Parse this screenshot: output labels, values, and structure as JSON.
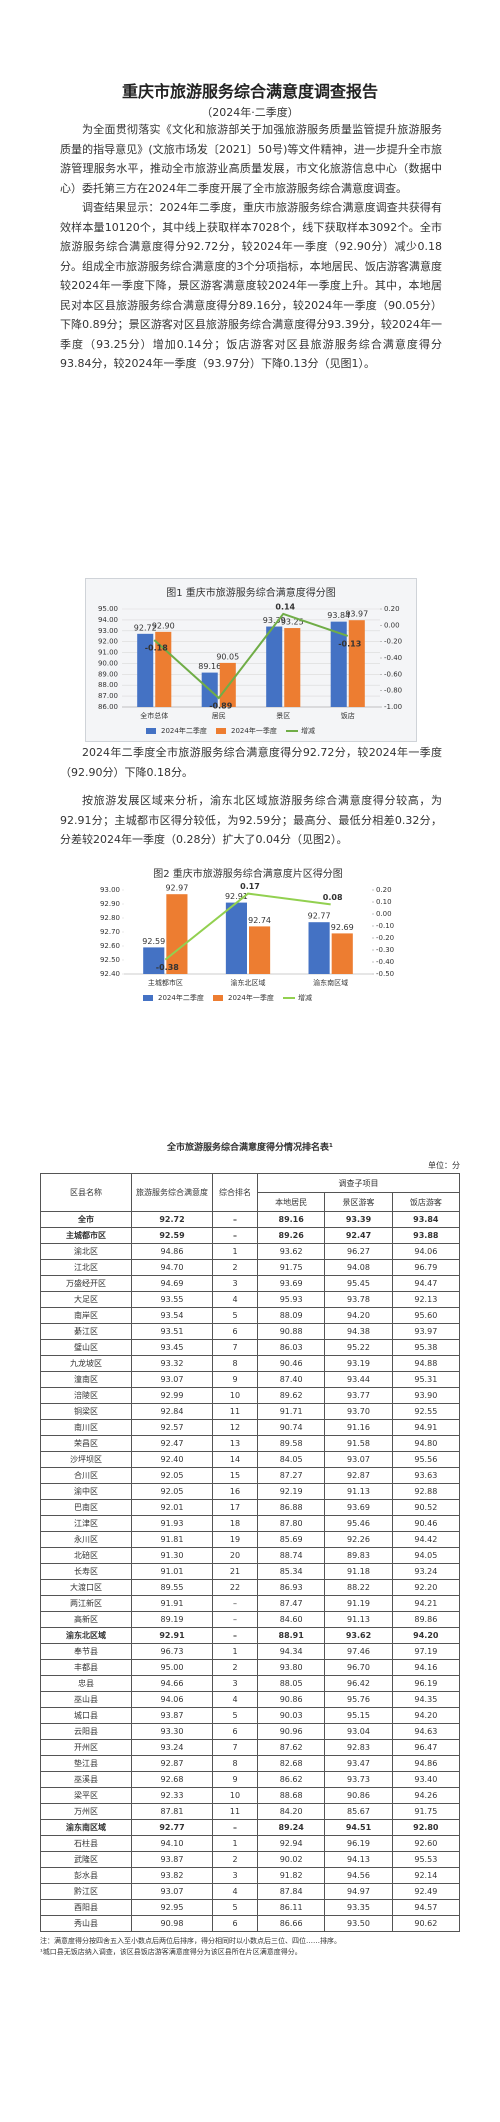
{
  "header": {
    "title": "重庆市旅游服务综合满意度调查报告",
    "subtitle": "（2024年·二季度）"
  },
  "paragraphs": [
    "为全面贯彻落实《文化和旅游部关于加强旅游服务质量监管提升旅游服务质量的指导意见》(文旅市场发〔2021〕50号)等文件精神，进一步提升全市旅游管理服务水平，推动全市旅游业高质量发展，市文化旅游信息中心（数据中心）委托第三方在2024年二季度开展了全市旅游服务综合满意度调查。",
    "调查结果显示：2024年二季度，重庆市旅游服务综合满意度调查共获得有效样本量10120个，其中线上获取样本7028个，线下获取样本3092个。全市旅游服务综合满意度得分92.72分，较2024年一季度（92.90分）减少0.18分。组成全市旅游服务综合满意度的3个分项指标，本地居民、饭店游客满意度较2024年一季度下降，景区游客满意度较2024年一季度上升。其中，本地居民对本区县旅游服务综合满意度得分89.16分，较2024年一季度（90.05分）下降0.89分；景区游客对区县旅游服务综合满意度得分93.39分，较2024年一季度（93.25分）增加0.14分；饭店游客对区县旅游服务综合满意度得分93.84分，较2024年一季度（93.97分）下降0.13分（见图1）。",
    "2024年二季度全市旅游服务综合满意度得分92.72分，较2024年一季度（92.90分）下降0.18分。",
    "按旅游发展区域来分析，渝东北区域旅游服务综合满意度得分较高，为92.91分；主城都市区得分较低，为92.59分；最高分、最低分相差0.32分，分差较2024年一季度（0.28分）扩大了0.04分（见图2）。"
  ],
  "chart_data": [
    {
      "type": "bar",
      "title": "图1 重庆市旅游服务综合满意度得分图",
      "categories": [
        "全市总体",
        "居民",
        "景区",
        "饭店"
      ],
      "series": [
        {
          "name": "2024年二季度",
          "color": "#4472c4",
          "values": [
            92.72,
            89.16,
            93.39,
            93.84
          ]
        },
        {
          "name": "2024年一季度",
          "color": "#ed7d31",
          "values": [
            92.9,
            90.05,
            93.25,
            93.97
          ],
          "value_labels": [
            "92.90",
            "90.05",
            "93.25",
            "93.97"
          ]
        },
        {
          "name": "增减",
          "type": "line",
          "axis": "y2",
          "color": "#70ad47",
          "values": [
            -0.18,
            -0.89,
            0.14,
            -0.13
          ]
        }
      ],
      "ylim": [
        86,
        95
      ],
      "yticks": [
        {
          "value": 86,
          "label": "86.00"
        },
        {
          "value": 87,
          "label": "87.00"
        },
        {
          "value": 88,
          "label": "88.00"
        },
        {
          "value": 89,
          "label": "89.00"
        },
        {
          "value": 90,
          "label": "90.00"
        },
        {
          "value": 91,
          "label": "91.00"
        },
        {
          "value": 92,
          "label": "92.00"
        },
        {
          "value": 93,
          "label": "93.00"
        },
        {
          "value": 94,
          "label": "94.00"
        },
        {
          "value": 95,
          "label": "95.00"
        }
      ],
      "y2lim": [
        -1,
        0.2
      ],
      "y2ticks": [
        {
          "value": 0.2,
          "label": "0.20"
        },
        {
          "value": 0,
          "label": "0.00"
        },
        {
          "value": -0.2,
          "label": "-0.20"
        },
        {
          "value": -0.4,
          "label": "-0.40"
        },
        {
          "value": -0.6,
          "label": "-0.60"
        },
        {
          "value": -0.8,
          "label": "-0.80"
        },
        {
          "value": -1,
          "label": "-1.00"
        }
      ],
      "grid": true
    },
    {
      "type": "bar",
      "title": "图2 重庆市旅游服务综合满意度片区得分图",
      "categories": [
        "主城都市区",
        "渝东北区域",
        "渝东南区域"
      ],
      "series": [
        {
          "name": "2024年二季度",
          "color": "#4472c4",
          "values": [
            92.59,
            92.91,
            92.77
          ]
        },
        {
          "name": "2024年一季度",
          "color": "#ed7d31",
          "values": [
            92.97,
            92.74,
            92.69
          ]
        },
        {
          "name": "增减",
          "type": "line",
          "axis": "y2",
          "color": "#92d050",
          "values": [
            -0.38,
            0.17,
            0.08
          ]
        }
      ],
      "ylim": [
        92.4,
        93
      ],
      "yticks": [
        {
          "value": 92.4,
          "label": "92.40"
        },
        {
          "value": 92.5,
          "label": "92.50"
        },
        {
          "value": 92.6,
          "label": "92.60"
        },
        {
          "value": 92.7,
          "label": "92.70"
        },
        {
          "value": 92.8,
          "label": "92.80"
        },
        {
          "value": 92.9,
          "label": "92.90"
        },
        {
          "value": 93,
          "label": "93.00"
        }
      ],
      "y2lim": [
        -0.5,
        0.2
      ],
      "y2ticks": [
        {
          "value": 0.2,
          "label": "0.20"
        },
        {
          "value": 0.1,
          "label": "0.10"
        },
        {
          "value": 0,
          "label": "0.00"
        },
        {
          "value": -0.1,
          "label": "-0.10"
        },
        {
          "value": -0.2,
          "label": "-0.20"
        },
        {
          "value": -0.3,
          "label": "-0.30"
        },
        {
          "value": -0.4,
          "label": "-0.40"
        },
        {
          "value": -0.5,
          "label": "-0.50"
        }
      ],
      "grid": false
    }
  ],
  "table": {
    "title": "全市旅游服务综合满意度得分情况排名表¹",
    "unit": "单位：分",
    "header": {
      "name": "区县名称",
      "score": "旅游服务综合满意度",
      "rank": "综合排名",
      "group": "调查子项目",
      "subs": [
        "本地居民",
        "景区游客",
        "饭店游客"
      ]
    },
    "total": [
      "全市",
      "92.72",
      "–",
      "89.16",
      "93.39",
      "93.84"
    ],
    "groups": [
      {
        "summary": [
          "主城都市区",
          "92.59",
          "–",
          "89.26",
          "92.47",
          "93.88"
        ],
        "rows": [
          [
            "渝北区",
            "94.86",
            "1",
            "93.62",
            "96.27",
            "94.06"
          ],
          [
            "江北区",
            "94.70",
            "2",
            "91.75",
            "94.08",
            "96.79"
          ],
          [
            "万盛经开区",
            "94.69",
            "3",
            "93.69",
            "95.45",
            "94.47"
          ],
          [
            "大足区",
            "93.55",
            "4",
            "95.93",
            "93.78",
            "92.13"
          ],
          [
            "南岸区",
            "93.54",
            "5",
            "88.09",
            "94.20",
            "95.60"
          ],
          [
            "綦江区",
            "93.51",
            "6",
            "90.88",
            "94.38",
            "93.97"
          ],
          [
            "璧山区",
            "93.45",
            "7",
            "86.03",
            "95.22",
            "95.38"
          ],
          [
            "九龙坡区",
            "93.32",
            "8",
            "90.46",
            "93.19",
            "94.88"
          ],
          [
            "潼南区",
            "93.07",
            "9",
            "87.40",
            "93.44",
            "95.31"
          ],
          [
            "涪陵区",
            "92.99",
            "10",
            "89.62",
            "93.77",
            "93.90"
          ],
          [
            "铜梁区",
            "92.84",
            "11",
            "91.71",
            "93.70",
            "92.55"
          ],
          [
            "南川区",
            "92.57",
            "12",
            "90.74",
            "91.16",
            "94.91"
          ],
          [
            "荣昌区",
            "92.47",
            "13",
            "89.58",
            "91.58",
            "94.80"
          ],
          [
            "沙坪坝区",
            "92.40",
            "14",
            "84.05",
            "93.07",
            "95.56"
          ],
          [
            "合川区",
            "92.05",
            "15",
            "87.27",
            "92.87",
            "93.63"
          ],
          [
            "渝中区",
            "92.05",
            "16",
            "92.19",
            "91.13",
            "92.88"
          ],
          [
            "巴南区",
            "92.01",
            "17",
            "86.88",
            "93.69",
            "90.52"
          ],
          [
            "江津区",
            "91.93",
            "18",
            "87.80",
            "95.46",
            "90.46"
          ],
          [
            "永川区",
            "91.81",
            "19",
            "85.69",
            "92.26",
            "94.42"
          ],
          [
            "北碚区",
            "91.30",
            "20",
            "88.74",
            "89.83",
            "94.05"
          ],
          [
            "长寿区",
            "91.01",
            "21",
            "85.34",
            "91.18",
            "93.24"
          ],
          [
            "大渡口区",
            "89.55",
            "22",
            "86.93",
            "88.22",
            "92.20"
          ],
          [
            "两江新区",
            "91.91",
            "–",
            "87.47",
            "91.19",
            "94.21"
          ],
          [
            "高新区",
            "89.19",
            "–",
            "84.60",
            "91.13",
            "89.86"
          ]
        ]
      },
      {
        "summary": [
          "渝东北区域",
          "92.91",
          "–",
          "88.91",
          "93.62",
          "94.20"
        ],
        "rows": [
          [
            "奉节县",
            "96.73",
            "1",
            "94.34",
            "97.46",
            "97.19"
          ],
          [
            "丰都县",
            "95.00",
            "2",
            "93.80",
            "96.70",
            "94.16"
          ],
          [
            "忠县",
            "94.66",
            "3",
            "88.05",
            "96.42",
            "96.19"
          ],
          [
            "巫山县",
            "94.06",
            "4",
            "90.86",
            "95.76",
            "94.35"
          ],
          [
            "城口县",
            "93.87",
            "5",
            "90.03",
            "95.15",
            "94.20"
          ],
          [
            "云阳县",
            "93.30",
            "6",
            "90.96",
            "93.04",
            "94.63"
          ],
          [
            "开州区",
            "93.24",
            "7",
            "87.62",
            "92.83",
            "96.47"
          ],
          [
            "垫江县",
            "92.87",
            "8",
            "82.68",
            "93.47",
            "94.86"
          ],
          [
            "巫溪县",
            "92.68",
            "9",
            "86.62",
            "93.73",
            "93.40"
          ],
          [
            "梁平区",
            "92.33",
            "10",
            "88.68",
            "90.86",
            "94.26"
          ],
          [
            "万州区",
            "87.81",
            "11",
            "84.20",
            "85.67",
            "91.75"
          ]
        ]
      },
      {
        "summary": [
          "渝东南区域",
          "92.77",
          "–",
          "89.24",
          "94.51",
          "92.80"
        ],
        "rows": [
          [
            "石柱县",
            "94.10",
            "1",
            "92.94",
            "96.19",
            "92.60"
          ],
          [
            "武隆区",
            "93.87",
            "2",
            "90.02",
            "94.13",
            "95.53"
          ],
          [
            "彭水县",
            "93.82",
            "3",
            "91.82",
            "94.56",
            "92.14"
          ],
          [
            "黔江区",
            "93.07",
            "4",
            "87.84",
            "94.97",
            "92.49"
          ],
          [
            "酉阳县",
            "92.95",
            "5",
            "86.11",
            "93.35",
            "94.57"
          ],
          [
            "秀山县",
            "90.98",
            "6",
            "86.66",
            "93.50",
            "90.62"
          ]
        ]
      }
    ],
    "notes": [
      "注：满意度得分按四舍五入至小数点后两位后排序，得分相同时以小数点后三位、四位……排序。",
      "¹城口县无饭店纳入调查，该区县饭店游客满意度得分为该区县所在片区满意度得分。"
    ]
  }
}
